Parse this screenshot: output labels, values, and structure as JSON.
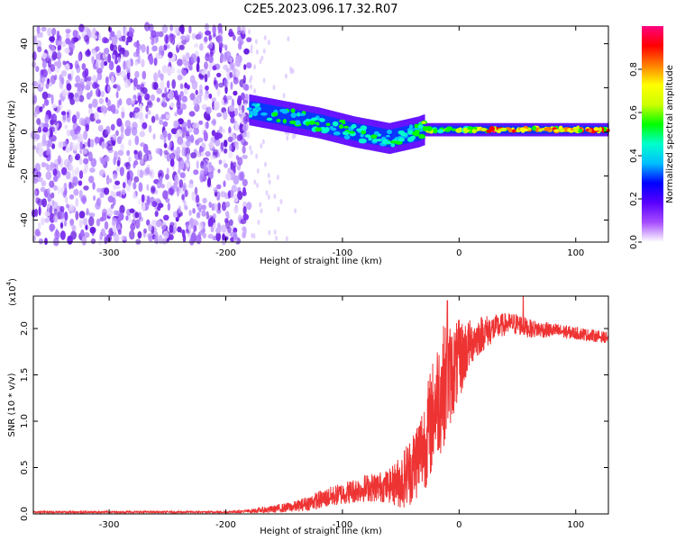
{
  "title": "C2E5.2023.096.17.32.R07",
  "colors": {
    "spectrogram_noise": "#7a2bf0",
    "snr_line": "#ee3333",
    "frame": "#000000"
  },
  "chart_data": [
    {
      "type": "heatmap",
      "name": "spectrogram",
      "xlabel": "Height of straight line (km)",
      "ylabel": "Frequency (Hz)",
      "xlim": [
        -365,
        128
      ],
      "ylim": [
        -50,
        48
      ],
      "xticks": [
        "-300",
        "-200",
        "-100",
        "0",
        "100"
      ],
      "xtick_values": [
        -300,
        -200,
        -100,
        0,
        100
      ],
      "yticks": [
        "-40",
        "-20",
        "0",
        "20",
        "40"
      ],
      "ytick_values": [
        -40,
        -20,
        0,
        20,
        40
      ],
      "colorbar": {
        "label": "Normalized spectral amplitude",
        "range": [
          0,
          1
        ],
        "ticks": [
          "0.0",
          "0.2",
          "0.4",
          "0.6",
          "0.8"
        ],
        "tick_values": [
          0.0,
          0.2,
          0.4,
          0.6,
          0.8
        ],
        "colormap": [
          "#ffffff",
          "#a64dff",
          "#5a00ff",
          "#0000ff",
          "#00bfff",
          "#00ffcc",
          "#00ff00",
          "#ccff00",
          "#ffff00",
          "#ff8000",
          "#ff0000",
          "#ff0080"
        ]
      },
      "noise_region": {
        "x": [
          -365,
          -180
        ],
        "y": [
          -50,
          48
        ],
        "amplitude": 0.1
      },
      "signal_track": [
        {
          "x": -180,
          "y": 10,
          "amplitude": 0.45
        },
        {
          "x": -150,
          "y": 7,
          "amplitude": 0.45
        },
        {
          "x": -120,
          "y": 4,
          "amplitude": 0.5
        },
        {
          "x": -90,
          "y": 0,
          "amplitude": 0.45
        },
        {
          "x": -60,
          "y": -3,
          "amplitude": 0.45
        },
        {
          "x": -35,
          "y": 0,
          "amplitude": 0.45
        },
        {
          "x": -30,
          "y": 1,
          "amplitude": 0.55
        },
        {
          "x": 0,
          "y": 1,
          "amplitude": 0.6
        },
        {
          "x": 30,
          "y": 1,
          "amplitude": 0.85
        },
        {
          "x": 60,
          "y": 1,
          "amplitude": 0.8
        },
        {
          "x": 90,
          "y": 1,
          "amplitude": 0.8
        },
        {
          "x": 128,
          "y": 1,
          "amplitude": 0.8
        }
      ]
    },
    {
      "type": "line",
      "name": "snr",
      "xlabel": "Height of straight line (km)",
      "ylabel": "SNR (10 * v/v)",
      "yscale_label": "(x10",
      "yscale_exp": "4",
      "xlim": [
        -365,
        128
      ],
      "ylim": [
        0,
        2.35
      ],
      "xticks": [
        "-300",
        "-200",
        "-100",
        "0",
        "100"
      ],
      "xtick_values": [
        -300,
        -200,
        -100,
        0,
        100
      ],
      "yticks": [
        "0.0",
        "0.5",
        "1.0",
        "1.5",
        "2.0"
      ],
      "ytick_values": [
        0.0,
        0.5,
        1.0,
        1.5,
        2.0
      ],
      "x": [
        -365,
        -300,
        -250,
        -200,
        -180,
        -160,
        -140,
        -120,
        -100,
        -80,
        -60,
        -50,
        -40,
        -30,
        -25,
        -20,
        -15,
        -10,
        -5,
        0,
        5,
        10,
        20,
        30,
        40,
        50,
        60,
        80,
        100,
        128
      ],
      "y": [
        0.02,
        0.02,
        0.02,
        0.02,
        0.03,
        0.05,
        0.08,
        0.15,
        0.22,
        0.28,
        0.3,
        0.35,
        0.5,
        0.75,
        0.95,
        1.2,
        1.35,
        1.45,
        1.55,
        1.65,
        1.75,
        1.85,
        1.95,
        2.0,
        2.05,
        2.05,
        2.0,
        1.98,
        1.95,
        1.9
      ],
      "noise_amplitude": [
        0.01,
        0.01,
        0.01,
        0.01,
        0.02,
        0.04,
        0.06,
        0.1,
        0.12,
        0.15,
        0.18,
        0.3,
        0.4,
        0.5,
        0.6,
        0.6,
        0.7,
        0.6,
        0.5,
        0.45,
        0.35,
        0.25,
        0.2,
        0.15,
        0.12,
        0.12,
        0.1,
        0.08,
        0.07,
        0.06
      ],
      "peaks": [
        {
          "x": -10,
          "y": 2.3
        },
        {
          "x": 55,
          "y": 2.35
        }
      ]
    }
  ]
}
